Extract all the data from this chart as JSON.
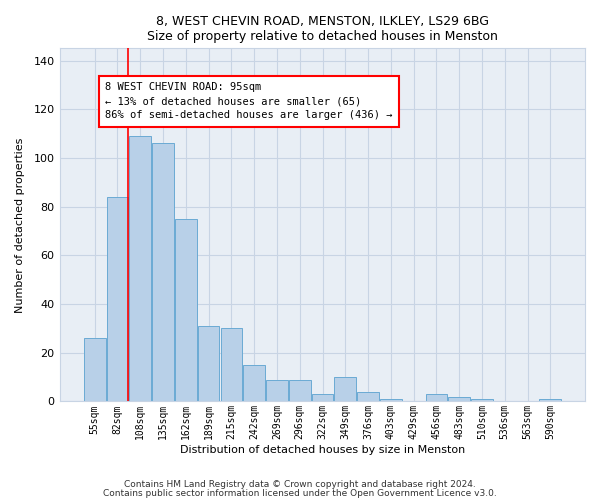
{
  "title1": "8, WEST CHEVIN ROAD, MENSTON, ILKLEY, LS29 6BG",
  "title2": "Size of property relative to detached houses in Menston",
  "xlabel": "Distribution of detached houses by size in Menston",
  "ylabel": "Number of detached properties",
  "footnote1": "Contains HM Land Registry data © Crown copyright and database right 2024.",
  "footnote2": "Contains public sector information licensed under the Open Government Licence v3.0.",
  "bar_labels": [
    "55sqm",
    "82sqm",
    "108sqm",
    "135sqm",
    "162sqm",
    "189sqm",
    "215sqm",
    "242sqm",
    "269sqm",
    "296sqm",
    "322sqm",
    "349sqm",
    "376sqm",
    "403sqm",
    "429sqm",
    "456sqm",
    "483sqm",
    "510sqm",
    "536sqm",
    "563sqm",
    "590sqm"
  ],
  "bar_values": [
    26,
    84,
    109,
    106,
    75,
    31,
    30,
    15,
    9,
    9,
    3,
    10,
    4,
    1,
    0,
    3,
    2,
    1,
    0,
    0,
    1
  ],
  "bar_color": "#b8d0e8",
  "bar_edge_color": "#6aaad4",
  "red_line_x": 1.48,
  "ann_text_line1": "8 WEST CHEVIN ROAD: 95sqm",
  "ann_text_line2": "← 13% of detached houses are smaller (65)",
  "ann_text_line3": "86% of semi-detached houses are larger (436) →",
  "ylim_max": 145,
  "grid_color": "#c8d4e4",
  "fig_bg": "#ffffff",
  "plot_bg": "#e8eef5"
}
